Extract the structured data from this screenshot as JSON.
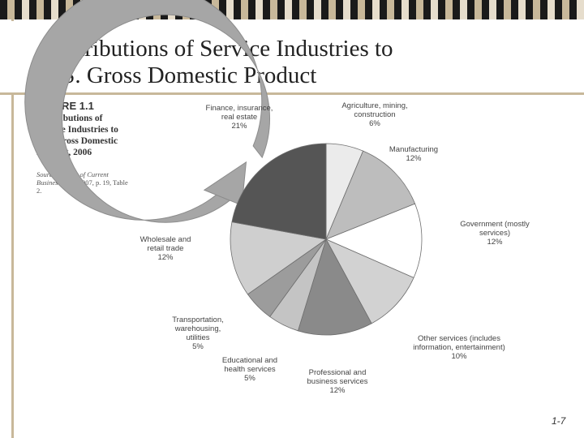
{
  "slide": {
    "title_line1": "Contributions of Service Industries to",
    "title_line2": "U.S. Gross Domestic Product",
    "page_number": "1-7"
  },
  "figure": {
    "number": "FIGURE 1.1",
    "title": "Contributions of Service Industries to U.S. Gross Domestic Product, 2006",
    "source_label": "Source:",
    "source_publication": "Survey of Current Business",
    "source_detail": ", May 2007, p. 19, Table 2."
  },
  "colors": {
    "bar_dark": "#1a1a1a",
    "bar_tan": "#c8b89a",
    "bar_light": "#e6ddcc",
    "arrow": "#a6a6a6"
  },
  "chart_data": {
    "type": "pie",
    "title": "",
    "unit": "%",
    "slices": [
      {
        "label_lines": [
          "Agriculture, mining,",
          "construction",
          "6%"
        ],
        "value": 6,
        "color": "#ebebeb"
      },
      {
        "label_lines": [
          "Manufacturing",
          "12%"
        ],
        "value": 12,
        "color": "#bdbdbd"
      },
      {
        "label_lines": [
          "Government (mostly",
          "services)",
          "12%"
        ],
        "value": 12,
        "color": "#ffffff"
      },
      {
        "label_lines": [
          "Other services (includes",
          "information, entertainment)",
          "10%"
        ],
        "value": 10,
        "color": "#d2d2d2"
      },
      {
        "label_lines": [
          "Professional and",
          "business services",
          "12%"
        ],
        "value": 12,
        "color": "#8a8a8a"
      },
      {
        "label_lines": [
          "Educational and",
          "health services",
          "5%"
        ],
        "value": 5,
        "color": "#c4c4c4"
      },
      {
        "label_lines": [
          "Transportation,",
          "warehousing,",
          "utilities",
          "5%"
        ],
        "value": 5,
        "color": "#9c9c9c"
      },
      {
        "label_lines": [
          "Wholesale and",
          "retail trade",
          "12%"
        ],
        "value": 12,
        "color": "#cfcfcf"
      },
      {
        "label_lines": [
          "Finance, insurance,",
          "real estate",
          "21%"
        ],
        "value": 21,
        "color": "#555555"
      }
    ]
  }
}
